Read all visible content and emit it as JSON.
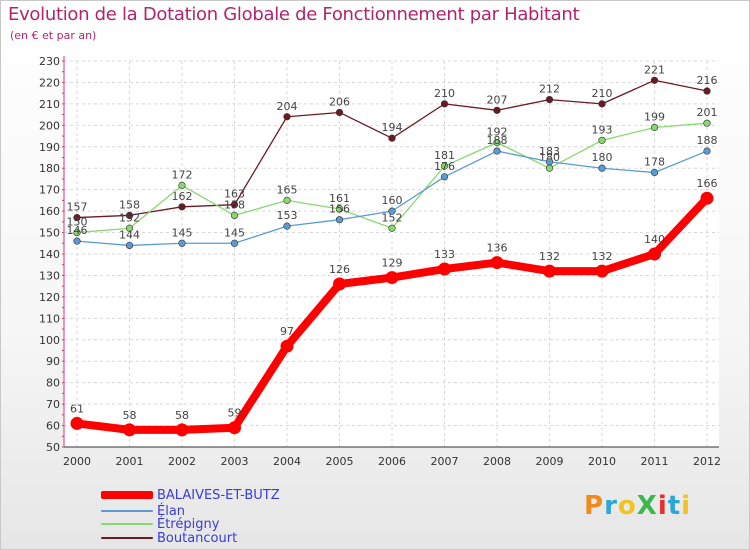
{
  "chart_data": {
    "type": "line",
    "title": "Evolution de la Dotation Globale de Fonctionnement par Habitant",
    "subtitle": "(en € et par an)",
    "xlabel": "",
    "ylabel": "",
    "ylim": [
      50,
      230
    ],
    "y_ticks": [
      50,
      60,
      70,
      80,
      90,
      100,
      110,
      120,
      130,
      140,
      150,
      160,
      170,
      180,
      190,
      200,
      210,
      220,
      230
    ],
    "x": [
      "2000",
      "2001",
      "2002",
      "2003",
      "2004",
      "2005",
      "2006",
      "2007",
      "2008",
      "2009",
      "2010",
      "2011",
      "2012"
    ],
    "grid": true,
    "legend_position": "bottom-left",
    "series": [
      {
        "name": "Boutancourt",
        "color": "#6b1a24",
        "emphasis": false,
        "values": [
          157,
          158,
          162,
          163,
          204,
          206,
          194,
          210,
          207,
          212,
          210,
          221,
          216
        ]
      },
      {
        "name": "Étrépigny",
        "color": "#88d870",
        "emphasis": false,
        "values": [
          150,
          152,
          172,
          158,
          165,
          161,
          152,
          181,
          192,
          180,
          193,
          199,
          201
        ]
      },
      {
        "name": "Élan",
        "color": "#5b9bd5",
        "emphasis": false,
        "values": [
          146,
          144,
          145,
          145,
          153,
          156,
          160,
          176,
          188,
          183,
          180,
          178,
          188
        ]
      },
      {
        "name": "BALAIVES-ET-BUTZ",
        "color": "#ff0000",
        "emphasis": true,
        "values": [
          61,
          58,
          58,
          59,
          97,
          126,
          129,
          133,
          136,
          132,
          132,
          140,
          166
        ]
      }
    ],
    "legend_order": [
      "BALAIVES-ET-BUTZ",
      "Élan",
      "Étrépigny",
      "Boutancourt"
    ]
  },
  "logo": {
    "text": "ProXiti",
    "letter_colors": [
      "#f08a1c",
      "#2aa6d8",
      "#f0c41c",
      "#3cb84a",
      "#e8302a",
      "#2aa6d8",
      "#f0c41c"
    ]
  }
}
